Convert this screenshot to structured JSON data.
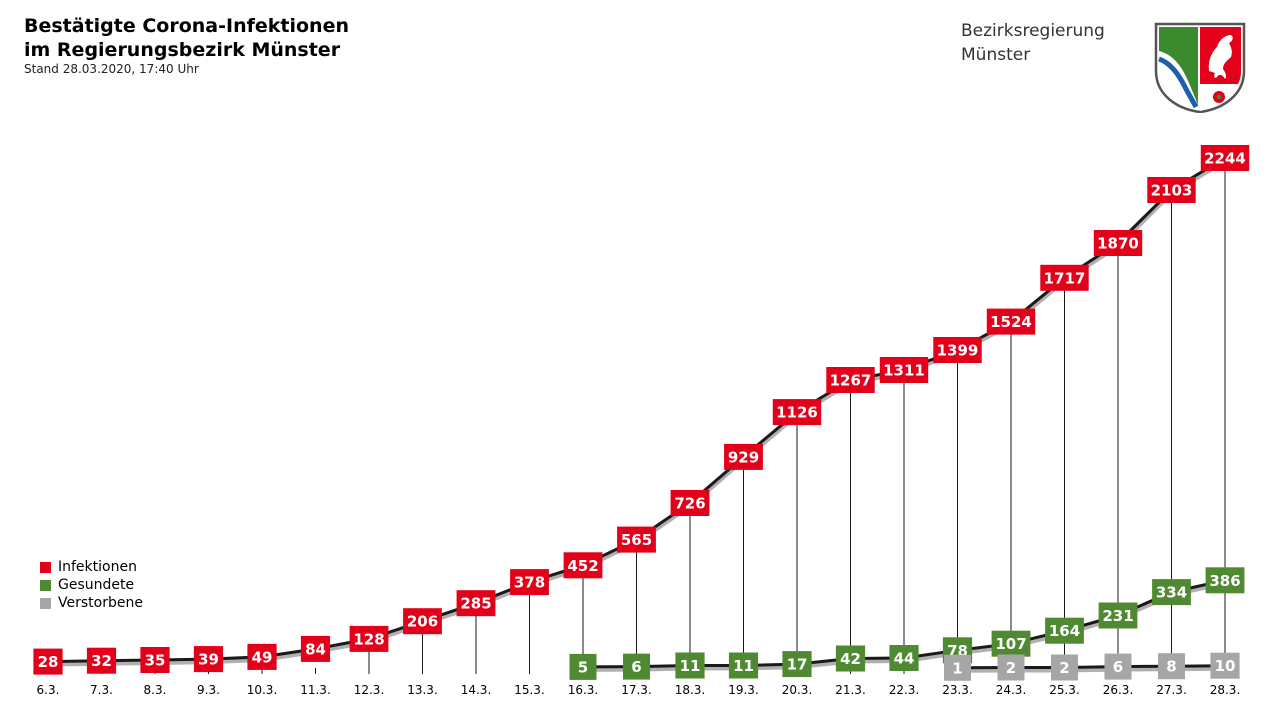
{
  "header": {
    "title_line1": "Bestätigte Corona-Infektionen",
    "title_line2": "im Regierungsbezirk Münster",
    "subtitle": "Stand 28.03.2020, 17:40 Uhr"
  },
  "org": {
    "line1": "Bezirksregierung",
    "line2": "Münster",
    "logo": "nrw-coat-of-arms"
  },
  "colors": {
    "infektionen": "#e2001a",
    "gesundete": "#4f8a32",
    "verstorbene": "#a6a6a6",
    "line": "#1a1a1a"
  },
  "chart_data": {
    "type": "line",
    "title": "Bestätigte Corona-Infektionen im Regierungsbezirk Münster",
    "categories": [
      "6.3.",
      "7.3.",
      "8.3.",
      "9.3.",
      "10.3.",
      "11.3.",
      "12.3.",
      "13.3.",
      "14.3.",
      "15.3.",
      "16.3.",
      "17.3.",
      "18.3.",
      "19.3.",
      "20.3.",
      "21.3.",
      "22.3.",
      "23.3.",
      "24.3.",
      "25.3.",
      "26.3.",
      "27.3.",
      "28.3."
    ],
    "series": [
      {
        "name": "Infektionen",
        "key": "infektionen",
        "values": [
          28,
          32,
          35,
          39,
          49,
          84,
          128,
          206,
          285,
          378,
          452,
          565,
          726,
          929,
          1126,
          1267,
          1311,
          1399,
          1524,
          1717,
          1870,
          2103,
          2244
        ]
      },
      {
        "name": "Gesundete",
        "key": "gesundete",
        "values": [
          null,
          null,
          null,
          null,
          null,
          null,
          null,
          null,
          null,
          null,
          5,
          6,
          11,
          11,
          17,
          42,
          44,
          78,
          107,
          164,
          231,
          334,
          386
        ]
      },
      {
        "name": "Verstorbene",
        "key": "verstorbene",
        "values": [
          null,
          null,
          null,
          null,
          null,
          null,
          null,
          null,
          null,
          null,
          null,
          null,
          null,
          null,
          null,
          null,
          null,
          1,
          2,
          2,
          6,
          8,
          10
        ]
      }
    ],
    "ylim": [
      0,
      2244
    ],
    "xlabel": "",
    "ylabel": "",
    "legend": "bottom-left",
    "grid": false
  }
}
